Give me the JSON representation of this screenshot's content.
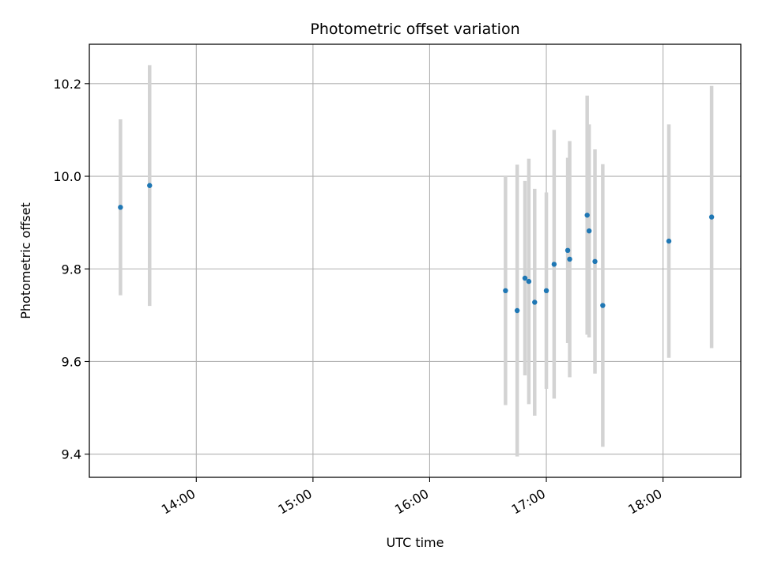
{
  "chart_data": {
    "type": "scatter",
    "title": "Photometric offset variation",
    "xlabel": "UTC time",
    "ylabel": "Photometric offset",
    "x_axis_kind": "time",
    "xlim": [
      "13:05",
      "18:40"
    ],
    "ylim": [
      9.35,
      10.285
    ],
    "grid": true,
    "x_ticks": [
      "14:00",
      "15:00",
      "16:00",
      "17:00",
      "18:00"
    ],
    "y_ticks": [
      "9.4",
      "9.6",
      "9.8",
      "10.0",
      "10.2"
    ],
    "colors": {
      "marker": "#1f77b4",
      "errorbar": "#d3d3d3",
      "grid": "#b0b0b0"
    },
    "points": [
      {
        "x": "13:21",
        "y": 9.933,
        "err": 0.19
      },
      {
        "x": "13:36",
        "y": 9.98,
        "err": 0.26
      },
      {
        "x": "16:39",
        "y": 9.753,
        "err": 0.247
      },
      {
        "x": "16:45",
        "y": 9.71,
        "err": 0.315
      },
      {
        "x": "16:49",
        "y": 9.78,
        "err": 0.21
      },
      {
        "x": "16:51",
        "y": 9.773,
        "err": 0.265
      },
      {
        "x": "16:54",
        "y": 9.728,
        "err": 0.245
      },
      {
        "x": "17:00",
        "y": 9.753,
        "err": 0.212
      },
      {
        "x": "17:04",
        "y": 9.81,
        "err": 0.29
      },
      {
        "x": "17:11",
        "y": 9.84,
        "err": 0.2
      },
      {
        "x": "17:12",
        "y": 9.821,
        "err": 0.255
      },
      {
        "x": "17:21",
        "y": 9.916,
        "err": 0.258
      },
      {
        "x": "17:22",
        "y": 9.882,
        "err": 0.23
      },
      {
        "x": "17:25",
        "y": 9.816,
        "err": 0.242
      },
      {
        "x": "17:29",
        "y": 9.721,
        "err": 0.305
      },
      {
        "x": "18:03",
        "y": 9.86,
        "err": 0.252
      },
      {
        "x": "18:25",
        "y": 9.912,
        "err": 0.283
      }
    ]
  }
}
